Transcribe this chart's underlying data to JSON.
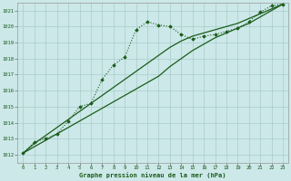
{
  "x": [
    0,
    1,
    2,
    3,
    4,
    5,
    6,
    7,
    8,
    9,
    10,
    11,
    12,
    13,
    14,
    15,
    16,
    17,
    18,
    19,
    20,
    21,
    22,
    23
  ],
  "line_straight1": [
    1012.1,
    1012.7,
    1013.2,
    1013.7,
    1014.2,
    1014.7,
    1015.2,
    1015.7,
    1016.2,
    1016.7,
    1017.2,
    1017.7,
    1018.2,
    1018.7,
    1019.1,
    1019.4,
    1019.6,
    1019.8,
    1020.0,
    1020.2,
    1020.5,
    1020.8,
    1021.1,
    1021.4
  ],
  "line_straight2": [
    1012.1,
    1012.5,
    1012.9,
    1013.3,
    1013.7,
    1014.1,
    1014.5,
    1014.9,
    1015.3,
    1015.7,
    1016.1,
    1016.5,
    1016.9,
    1017.5,
    1018.0,
    1018.5,
    1018.9,
    1019.3,
    1019.6,
    1019.9,
    1020.2,
    1020.6,
    1021.0,
    1021.4
  ],
  "line_wavy": [
    1012.1,
    1012.8,
    1013.0,
    1013.3,
    1014.1,
    1015.0,
    1015.2,
    1016.7,
    1017.6,
    1018.1,
    1019.8,
    1020.3,
    1020.1,
    1020.0,
    1019.5,
    1019.2,
    1019.4,
    1019.5,
    1019.7,
    1019.9,
    1020.3,
    1020.9,
    1021.3,
    1021.4
  ],
  "ylim": [
    1011.5,
    1021.5
  ],
  "xlim": [
    -0.5,
    23.5
  ],
  "yticks": [
    1012,
    1013,
    1014,
    1015,
    1016,
    1017,
    1018,
    1019,
    1020,
    1021
  ],
  "xticks": [
    0,
    1,
    2,
    3,
    4,
    5,
    6,
    7,
    8,
    9,
    10,
    11,
    12,
    13,
    14,
    15,
    16,
    17,
    18,
    19,
    20,
    21,
    22,
    23
  ],
  "xlabel": "Graphe pression niveau de la mer (hPa)",
  "bg_color": "#cce8e8",
  "line_color": "#1a5c1a",
  "grid_color": "#aacccc"
}
